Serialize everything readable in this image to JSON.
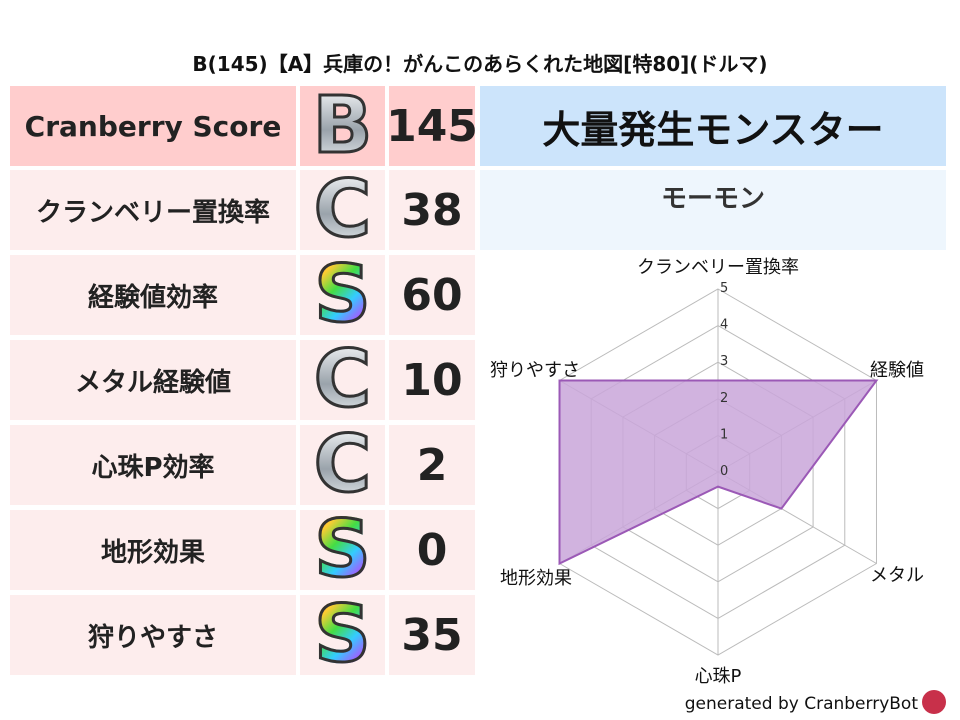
{
  "title": "B(145)【A】兵庫の！がんこのあらくれた地図[特80](ドルマ)",
  "score": {
    "label": "Cranberry Score",
    "grade": "B",
    "value": "145"
  },
  "rows": [
    {
      "label": "クランベリー置換率",
      "grade": "C",
      "value": "38"
    },
    {
      "label": "経験値効率",
      "grade": "S",
      "value": "60"
    },
    {
      "label": "メタル経験値",
      "grade": "C",
      "value": "10"
    },
    {
      "label": "心珠P効率",
      "grade": "C",
      "value": "2"
    },
    {
      "label": "地形効果",
      "grade": "S",
      "value": "0"
    },
    {
      "label": "狩りやすさ",
      "grade": "S",
      "value": "35"
    }
  ],
  "monster": {
    "header": "大量発生モンスター",
    "name": "モーモン"
  },
  "footer": "generated by CranberryBot",
  "colors": {
    "score_bg": "#ffcdcd",
    "row_bg": "#fdeded",
    "header_bg": "#cce4fb",
    "monster_bg": "#eef6fd",
    "radar_fill": "#c9a6d9",
    "radar_line": "#9b59b6"
  },
  "chart_data": {
    "type": "radar",
    "axes": [
      "クランベリー置換率",
      "経験値",
      "メタル",
      "心珠P",
      "地形効果",
      "狩りやすさ"
    ],
    "values": [
      2.5,
      5,
      2,
      0.4,
      5,
      5
    ],
    "range": [
      0,
      5
    ],
    "ticks": [
      "0",
      "1",
      "2",
      "3",
      "4",
      "5"
    ],
    "grid": true
  }
}
